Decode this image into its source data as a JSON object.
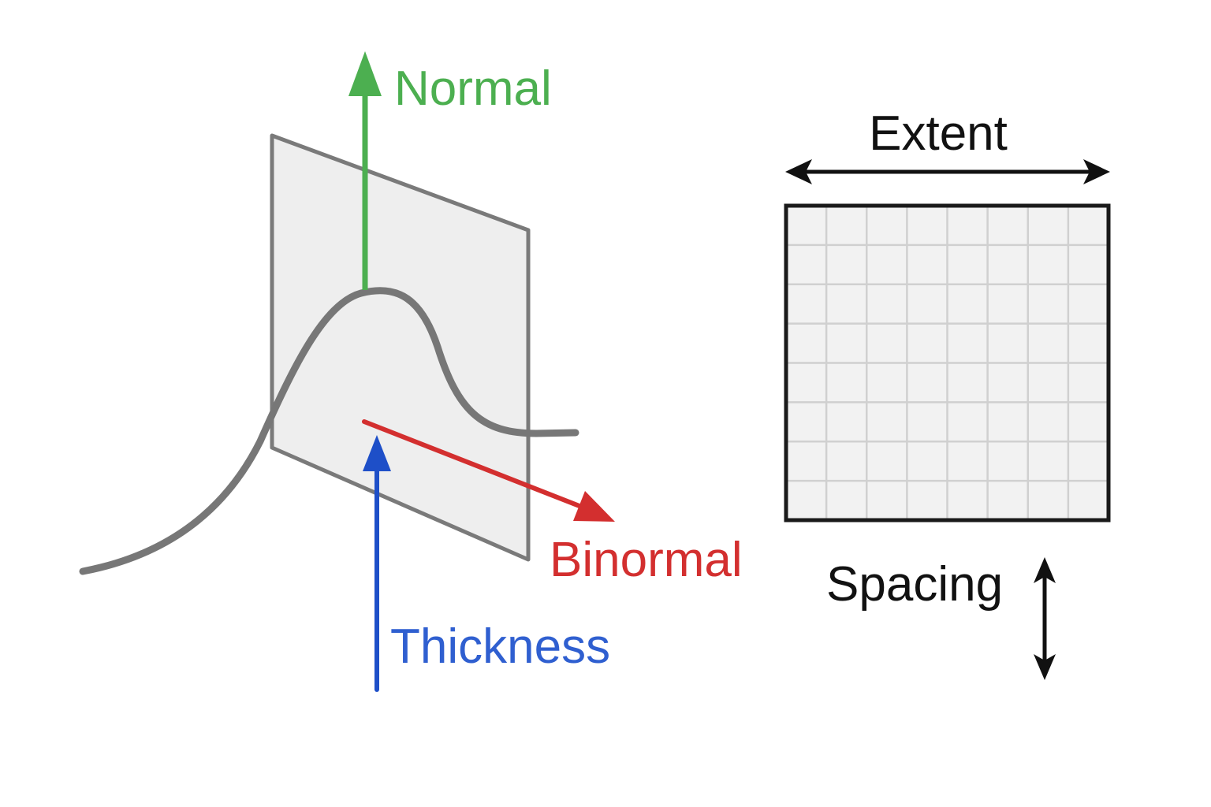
{
  "labels": {
    "normal": "Normal",
    "binormal": "Binormal",
    "thickness": "Thickness",
    "extent": "Extent",
    "spacing": "Spacing"
  },
  "colors": {
    "normal": "#4caf50",
    "binormal": "#d32f2f",
    "thickness": "#1e4fc8",
    "thickness_text": "#2f5fd0",
    "curve": "#777777",
    "plane_fill": "#eeeeee",
    "plane_stroke": "#7a7a7a",
    "grid_border": "#1a1a1a",
    "grid_line": "#d0d0d0",
    "text_dark": "#111111"
  },
  "grid": {
    "columns": 8,
    "rows": 8
  }
}
